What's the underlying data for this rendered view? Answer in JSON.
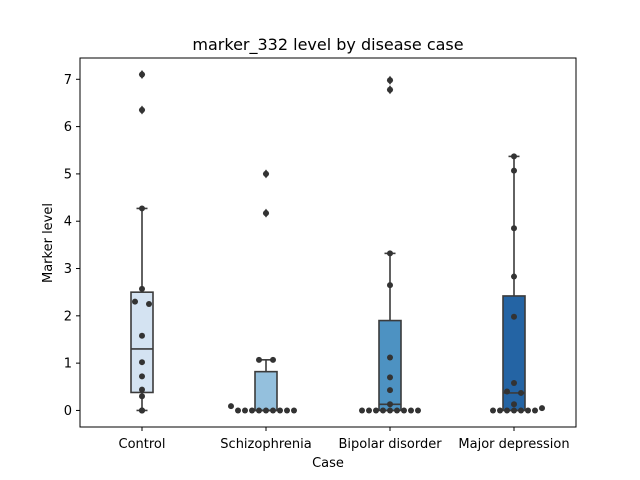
{
  "chart_data": {
    "type": "box",
    "title": "marker_332 level by disease case",
    "xlabel": "Case",
    "ylabel": "Marker level",
    "ylim": [
      -0.35,
      7.45
    ],
    "yticks": [
      0,
      1,
      2,
      3,
      4,
      5,
      6,
      7
    ],
    "categories": [
      "Control",
      "Schizophrenia",
      "Bipolar disorder",
      "Major depression"
    ],
    "colors": [
      "#d4e3f2",
      "#94c0dd",
      "#4d92c2",
      "#2464a4"
    ],
    "boxes": [
      {
        "q1": 0.38,
        "median": 1.3,
        "q3": 2.5,
        "whisker_low": 0.0,
        "whisker_high": 4.27,
        "fliers": [
          6.35,
          7.1
        ]
      },
      {
        "q1": 0.0,
        "median": 0.0,
        "q3": 0.82,
        "whisker_low": 0.0,
        "whisker_high": 1.07,
        "fliers": [
          4.17,
          5.0
        ]
      },
      {
        "q1": 0.0,
        "median": 0.13,
        "q3": 1.9,
        "whisker_low": 0.0,
        "whisker_high": 3.32,
        "fliers": [
          6.78,
          6.98
        ]
      },
      {
        "q1": 0.0,
        "median": 0.37,
        "q3": 2.42,
        "whisker_low": 0.0,
        "whisker_high": 5.37,
        "fliers": []
      }
    ],
    "points": [
      [
        [
          0,
          0
        ],
        [
          0,
          0
        ],
        [
          0,
          0
        ],
        [
          0.3,
          0
        ],
        [
          0.44,
          0
        ],
        [
          0.72,
          0
        ],
        [
          1.02,
          0
        ],
        [
          1.58,
          0
        ],
        [
          2.3,
          -1
        ],
        [
          2.25,
          1
        ],
        [
          2.57,
          0
        ],
        [
          4.27,
          0
        ],
        [
          6.35,
          0
        ],
        [
          7.1,
          0
        ]
      ],
      [
        [
          0.09,
          -5
        ],
        [
          0,
          -4
        ],
        [
          0,
          -3
        ],
        [
          0,
          -2
        ],
        [
          0,
          -1
        ],
        [
          0,
          0
        ],
        [
          0,
          1
        ],
        [
          0,
          2
        ],
        [
          0,
          3
        ],
        [
          0,
          4
        ],
        [
          1.07,
          -1
        ],
        [
          1.07,
          1
        ],
        [
          4.17,
          0
        ],
        [
          5.0,
          0
        ]
      ],
      [
        [
          0,
          -4
        ],
        [
          0,
          -3
        ],
        [
          0,
          -2
        ],
        [
          0,
          -1
        ],
        [
          0,
          0
        ],
        [
          0,
          1
        ],
        [
          0,
          2
        ],
        [
          0,
          3
        ],
        [
          0,
          4
        ],
        [
          0.13,
          0
        ],
        [
          0.43,
          0
        ],
        [
          0.7,
          0
        ],
        [
          1.12,
          0
        ],
        [
          2.65,
          0
        ],
        [
          3.32,
          0
        ],
        [
          6.78,
          0
        ],
        [
          6.98,
          0
        ]
      ],
      [
        [
          0,
          -3
        ],
        [
          0,
          -2
        ],
        [
          0,
          -1
        ],
        [
          0,
          0
        ],
        [
          0,
          1
        ],
        [
          0,
          2
        ],
        [
          0,
          3
        ],
        [
          0.05,
          4
        ],
        [
          0.13,
          0
        ],
        [
          0.4,
          -1
        ],
        [
          0.37,
          1
        ],
        [
          0.58,
          0
        ],
        [
          1.98,
          0
        ],
        [
          2.83,
          0
        ],
        [
          3.85,
          0
        ],
        [
          5.07,
          0
        ],
        [
          5.37,
          0
        ]
      ]
    ]
  }
}
